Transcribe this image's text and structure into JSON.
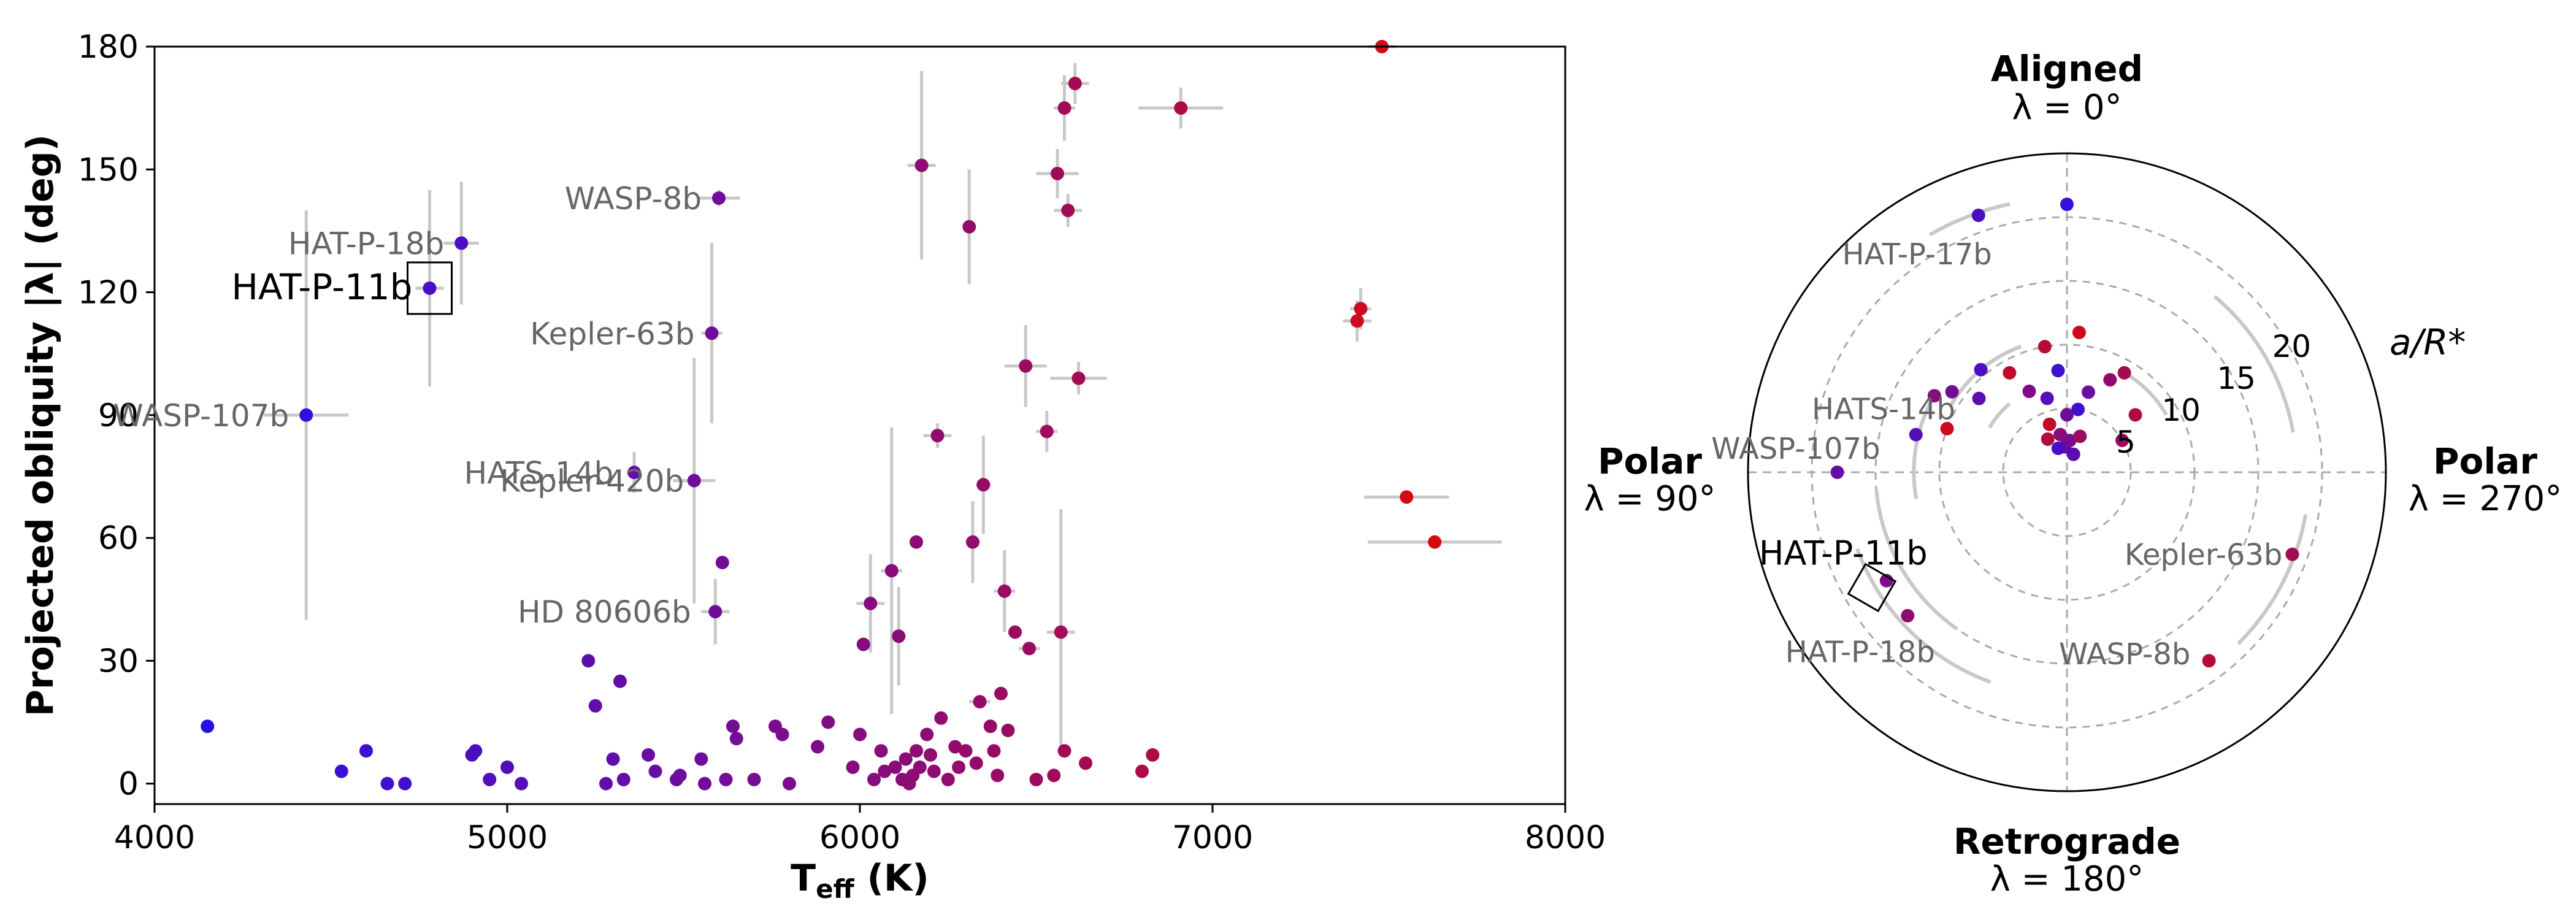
{
  "chart_data": [
    {
      "type": "scatter",
      "xlabel": "T",
      "xlabel_sub": "eff",
      "xlabel_unit": " (K)",
      "ylabel": "Projected obliquity |λ| (deg)",
      "xlim": [
        4000,
        8000
      ],
      "ylim": [
        -5,
        180
      ],
      "xticks": [
        4000,
        5000,
        6000,
        7000,
        8000
      ],
      "yticks": [
        0,
        30,
        60,
        90,
        120,
        150,
        180
      ],
      "errorbar_color": "#c8c8c8",
      "color_scale": {
        "cool": "#2a10e8",
        "mid": "#7a0c8e",
        "hot": "#d80a0a",
        "range": [
          4200,
          7700
        ]
      },
      "labels": [
        {
          "text": "HAT-P-11b",
          "x": 4780,
          "y": 121,
          "highlight": true
        },
        {
          "text": "HAT-P-18b",
          "x": 4870,
          "y": 132
        },
        {
          "text": "WASP-107b",
          "x": 4430,
          "y": 90
        },
        {
          "text": "WASP-8b",
          "x": 5600,
          "y": 143
        },
        {
          "text": "Kepler-63b",
          "x": 5580,
          "y": 110
        },
        {
          "text": "HATS-14b",
          "x": 5350,
          "y": 76
        },
        {
          "text": "Kepler-420b",
          "x": 5550,
          "y": 74
        },
        {
          "text": "HD 80606b",
          "x": 5570,
          "y": 42
        }
      ],
      "points": [
        {
          "x": 4150,
          "y": 14
        },
        {
          "x": 4430,
          "y": 90,
          "xerr": 120,
          "yerr": 50
        },
        {
          "x": 4530,
          "y": 3
        },
        {
          "x": 4600,
          "y": 8
        },
        {
          "x": 4660,
          "y": 0
        },
        {
          "x": 4710,
          "y": 0
        },
        {
          "x": 4780,
          "y": 121,
          "xerr": 40,
          "yerr": 24
        },
        {
          "x": 4870,
          "y": 132,
          "xerr": 50,
          "yerr": 15
        },
        {
          "x": 4900,
          "y": 7
        },
        {
          "x": 4910,
          "y": 8
        },
        {
          "x": 4950,
          "y": 1
        },
        {
          "x": 5000,
          "y": 4
        },
        {
          "x": 5040,
          "y": 0
        },
        {
          "x": 5230,
          "y": 30
        },
        {
          "x": 5250,
          "y": 19
        },
        {
          "x": 5280,
          "y": 0
        },
        {
          "x": 5300,
          "y": 6
        },
        {
          "x": 5320,
          "y": 25
        },
        {
          "x": 5330,
          "y": 1
        },
        {
          "x": 5360,
          "y": 76,
          "xerr": 20,
          "yerr": 5
        },
        {
          "x": 5400,
          "y": 7
        },
        {
          "x": 5420,
          "y": 3
        },
        {
          "x": 5480,
          "y": 1
        },
        {
          "x": 5490,
          "y": 2
        },
        {
          "x": 5530,
          "y": 74,
          "xerr": 60,
          "yerr": 30
        },
        {
          "x": 5550,
          "y": 6
        },
        {
          "x": 5560,
          "y": 0
        },
        {
          "x": 5580,
          "y": 110,
          "xerr": 30,
          "yerr": 22
        },
        {
          "x": 5590,
          "y": 42,
          "xerr": 40,
          "yerr": 8
        },
        {
          "x": 5600,
          "y": 143,
          "xerr": 60,
          "yerr": 2
        },
        {
          "x": 5610,
          "y": 54
        },
        {
          "x": 5620,
          "y": 1
        },
        {
          "x": 5640,
          "y": 14
        },
        {
          "x": 5650,
          "y": 11
        },
        {
          "x": 5700,
          "y": 1
        },
        {
          "x": 5760,
          "y": 14
        },
        {
          "x": 5780,
          "y": 12
        },
        {
          "x": 5800,
          "y": 0
        },
        {
          "x": 5880,
          "y": 9
        },
        {
          "x": 5910,
          "y": 15
        },
        {
          "x": 5980,
          "y": 4
        },
        {
          "x": 6000,
          "y": 12
        },
        {
          "x": 6010,
          "y": 34
        },
        {
          "x": 6030,
          "y": 44,
          "xerr": 40,
          "yerr": 12
        },
        {
          "x": 6040,
          "y": 1
        },
        {
          "x": 6060,
          "y": 8
        },
        {
          "x": 6070,
          "y": 3
        },
        {
          "x": 6090,
          "y": 52,
          "xerr": 30,
          "yerr": 35
        },
        {
          "x": 6100,
          "y": 4
        },
        {
          "x": 6110,
          "y": 36,
          "xerr": 20,
          "yerr": 12
        },
        {
          "x": 6120,
          "y": 1
        },
        {
          "x": 6130,
          "y": 6
        },
        {
          "x": 6140,
          "y": 0
        },
        {
          "x": 6150,
          "y": 2
        },
        {
          "x": 6160,
          "y": 8
        },
        {
          "x": 6160,
          "y": 59
        },
        {
          "x": 6170,
          "y": 4
        },
        {
          "x": 6175,
          "y": 151,
          "xerr": 40,
          "yerr": 23
        },
        {
          "x": 6190,
          "y": 12
        },
        {
          "x": 6200,
          "y": 7
        },
        {
          "x": 6210,
          "y": 3
        },
        {
          "x": 6220,
          "y": 85,
          "xerr": 40,
          "yerr": 3
        },
        {
          "x": 6230,
          "y": 16
        },
        {
          "x": 6250,
          "y": 1
        },
        {
          "x": 6270,
          "y": 9
        },
        {
          "x": 6280,
          "y": 4
        },
        {
          "x": 6300,
          "y": 8
        },
        {
          "x": 6310,
          "y": 136,
          "yerr": 14
        },
        {
          "x": 6320,
          "y": 59,
          "xerr": 20,
          "yerr": 10
        },
        {
          "x": 6330,
          "y": 5
        },
        {
          "x": 6340,
          "y": 20,
          "xerr": 30
        },
        {
          "x": 6350,
          "y": 73,
          "xerr": 20,
          "yerr": 12
        },
        {
          "x": 6370,
          "y": 14
        },
        {
          "x": 6380,
          "y": 8
        },
        {
          "x": 6390,
          "y": 2
        },
        {
          "x": 6400,
          "y": 22
        },
        {
          "x": 6410,
          "y": 47,
          "xerr": 30,
          "yerr": 10
        },
        {
          "x": 6420,
          "y": 13
        },
        {
          "x": 6440,
          "y": 37
        },
        {
          "x": 6470,
          "y": 102,
          "xerr": 60,
          "yerr": 10
        },
        {
          "x": 6480,
          "y": 33,
          "xerr": 30
        },
        {
          "x": 6500,
          "y": 1
        },
        {
          "x": 6530,
          "y": 86,
          "xerr": 30,
          "yerr": 5
        },
        {
          "x": 6550,
          "y": 2
        },
        {
          "x": 6560,
          "y": 149,
          "xerr": 60,
          "yerr": 6
        },
        {
          "x": 6570,
          "y": 37,
          "xerr": 40,
          "yerr": 30
        },
        {
          "x": 6580,
          "y": 8
        },
        {
          "x": 6580,
          "y": 165,
          "xerr": 30,
          "yerr": 8
        },
        {
          "x": 6590,
          "y": 140,
          "xerr": 40,
          "yerr": 4
        },
        {
          "x": 6610,
          "y": 171,
          "xerr": 40,
          "yerr": 5
        },
        {
          "x": 6620,
          "y": 99,
          "xerr": 80,
          "yerr": 4
        },
        {
          "x": 6640,
          "y": 5
        },
        {
          "x": 6800,
          "y": 3
        },
        {
          "x": 6830,
          "y": 7
        },
        {
          "x": 6910,
          "y": 165,
          "xerr": 120,
          "yerr": 5
        },
        {
          "x": 7410,
          "y": 113,
          "xerr": 40,
          "yerr": 5
        },
        {
          "x": 7420,
          "y": 116,
          "xerr": 30,
          "yerr": 5
        },
        {
          "x": 7480,
          "y": 180,
          "xerr": 40
        },
        {
          "x": 7550,
          "y": 70,
          "xerr": 120
        },
        {
          "x": 7630,
          "y": 59,
          "xerr": 190
        }
      ]
    },
    {
      "type": "polar-scatter",
      "title": "Aligned",
      "title_math": "λ = 0°",
      "left_label": "Polar",
      "left_math": "λ = 90°",
      "right_label": "Polar",
      "right_math": "λ = 270°",
      "bottom_label": "Retrograde",
      "bottom_math": "λ = 180°",
      "radial_label": "a/R*",
      "rlim": [
        0,
        25
      ],
      "rgrid": [
        5,
        10,
        15,
        20
      ],
      "labels": [
        {
          "text": "HAT-P-17b",
          "lambda": 19,
          "r": 21
        },
        {
          "text": "HATS-14b",
          "lambda": 76,
          "r": 12
        },
        {
          "text": "WASP-107b",
          "lambda": 90,
          "r": 18
        },
        {
          "text": "HAT-P-11b",
          "lambda": 121,
          "r": 17.8,
          "highlight": true
        },
        {
          "text": "HAT-P-18b",
          "lambda": 132,
          "r": 16.5
        },
        {
          "text": "Kepler-63b",
          "lambda": 250,
          "r": 19
        },
        {
          "text": "WASP-8b",
          "lambda": 217,
          "r": 18
        }
      ],
      "points": [
        {
          "lambda": 0,
          "r": 21
        },
        {
          "lambda": 19,
          "r": 21.3
        },
        {
          "lambda": 5,
          "r": 2
        },
        {
          "lambda": 355,
          "r": 2.5
        },
        {
          "lambda": 10,
          "r": 3
        },
        {
          "lambda": 340,
          "r": 3
        },
        {
          "lambda": 30,
          "r": 3
        },
        {
          "lambda": 20,
          "r": 4
        },
        {
          "lambda": 350,
          "r": 5
        },
        {
          "lambda": 15,
          "r": 6
        },
        {
          "lambda": 345,
          "r": 6.5
        },
        {
          "lambda": 25,
          "r": 7
        },
        {
          "lambda": 335,
          "r": 8
        },
        {
          "lambda": 330,
          "r": 9
        },
        {
          "lambda": 10,
          "r": 10
        },
        {
          "lambda": 355,
          "r": 11
        },
        {
          "lambda": 40,
          "r": 10.5
        },
        {
          "lambda": 50,
          "r": 9
        },
        {
          "lambda": 55,
          "r": 11
        },
        {
          "lambda": 60,
          "r": 12
        },
        {
          "lambda": 300,
          "r": 5
        },
        {
          "lambda": 310,
          "r": 7
        },
        {
          "lambda": 30,
          "r": 9
        },
        {
          "lambda": 5,
          "r": 8
        },
        {
          "lambda": 76,
          "r": 12.2
        },
        {
          "lambda": 90,
          "r": 18
        },
        {
          "lambda": 121,
          "r": 16.5
        },
        {
          "lambda": 132,
          "r": 16.8
        },
        {
          "lambda": 250,
          "r": 18.8
        },
        {
          "lambda": 217,
          "r": 18.5
        },
        {
          "lambda": 70,
          "r": 10
        },
        {
          "lambda": 20,
          "r": 2
        },
        {
          "lambda": 340,
          "r": 1.5
        },
        {
          "lambda": 0,
          "r": 4.5
        }
      ],
      "arcs": [
        {
          "r": 21.5,
          "from": 12,
          "to": 30
        },
        {
          "r": 10.5,
          "from": 20,
          "to": 60
        },
        {
          "r": 12,
          "from": 60,
          "to": 100
        },
        {
          "r": 9,
          "from": 300,
          "to": 330
        },
        {
          "r": 15,
          "from": 95,
          "to": 145
        },
        {
          "r": 17.5,
          "from": 110,
          "to": 160
        },
        {
          "r": 19,
          "from": 225,
          "to": 260
        },
        {
          "r": 18,
          "from": 280,
          "to": 320
        },
        {
          "r": 7,
          "from": 40,
          "to": 60
        }
      ]
    }
  ]
}
